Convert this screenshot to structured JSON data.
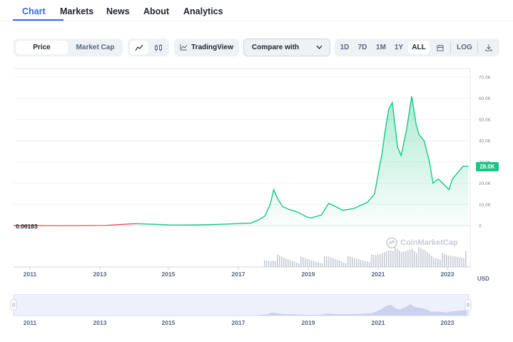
{
  "tabs": [
    {
      "label": "Chart"
    },
    {
      "label": "Markets"
    },
    {
      "label": "News"
    },
    {
      "label": "About"
    },
    {
      "label": "Analytics"
    }
  ],
  "toolbar": {
    "type_options": [
      {
        "label": "Price",
        "selected": true
      },
      {
        "label": "Market Cap",
        "selected": false
      }
    ],
    "chart_style_icons": [
      "line-chart-icon",
      "candlestick-icon"
    ],
    "tradingview_label": "TradingView",
    "compare_label": "Compare with",
    "ranges": [
      {
        "label": "1D",
        "selected": false
      },
      {
        "label": "7D",
        "selected": false
      },
      {
        "label": "1M",
        "selected": false
      },
      {
        "label": "1Y",
        "selected": false
      },
      {
        "label": "ALL",
        "selected": true
      }
    ],
    "log_label": "LOG"
  },
  "chart": {
    "start_value_label": "0.06183",
    "current_price_label": "28.0K",
    "currency_label": "USD",
    "watermark": "CoinMarketCap",
    "colors": {
      "up": "#16c784",
      "down": "#ea3943",
      "accent": "#3861fb"
    }
  },
  "chart_data": {
    "type": "area",
    "title": "",
    "xlabel": "",
    "ylabel": "",
    "x_ticks": [
      "2011",
      "2013",
      "2015",
      "2017",
      "2019",
      "2021",
      "2023"
    ],
    "y_ticks": [
      "0",
      "10.0K",
      "20.0K",
      "30.0K",
      "40.0K",
      "50.0K",
      "60.0K",
      "70.0K"
    ],
    "ylim": [
      0,
      70000
    ],
    "xlim": [
      2010.6,
      2023.5
    ],
    "series": [
      {
        "x": [
          2010.6,
          2011.5,
          2012.5,
          2013.2,
          2013.9,
          2014.1,
          2014.6,
          2015.0,
          2015.5,
          2016.0,
          2016.5,
          2017.0,
          2017.3,
          2017.5,
          2017.7,
          2017.85,
          2017.95,
          2018.05,
          2018.2,
          2018.4,
          2018.6,
          2018.9,
          2019.0,
          2019.3,
          2019.5,
          2019.7,
          2019.9,
          2020.2,
          2020.4,
          2020.6,
          2020.8,
          2020.95,
          2021.0,
          2021.1,
          2021.2,
          2021.3,
          2021.45,
          2021.55,
          2021.7,
          2021.85,
          2021.97,
          2022.05,
          2022.2,
          2022.35,
          2022.45,
          2022.6,
          2022.75,
          2022.9,
          2023.0,
          2023.15,
          2023.3,
          2023.45
        ],
        "y": [
          0.06,
          5,
          10,
          100,
          800,
          900,
          600,
          300,
          250,
          400,
          650,
          1000,
          1200,
          2500,
          4500,
          10000,
          17000,
          13000,
          9000,
          7500,
          6500,
          4000,
          3600,
          5000,
          10500,
          9000,
          7200,
          8000,
          9500,
          11000,
          15000,
          29000,
          33000,
          45000,
          55000,
          58000,
          37000,
          33000,
          45000,
          61000,
          48000,
          43000,
          40000,
          30000,
          20000,
          22000,
          19500,
          17000,
          22000,
          25000,
          28000,
          28000
        ]
      }
    ],
    "volume_visible": true,
    "log_scale": false,
    "grid": true
  },
  "navigator": {
    "x_ticks": [
      "2011",
      "2013",
      "2015",
      "2017",
      "2019",
      "2021",
      "2023"
    ]
  }
}
